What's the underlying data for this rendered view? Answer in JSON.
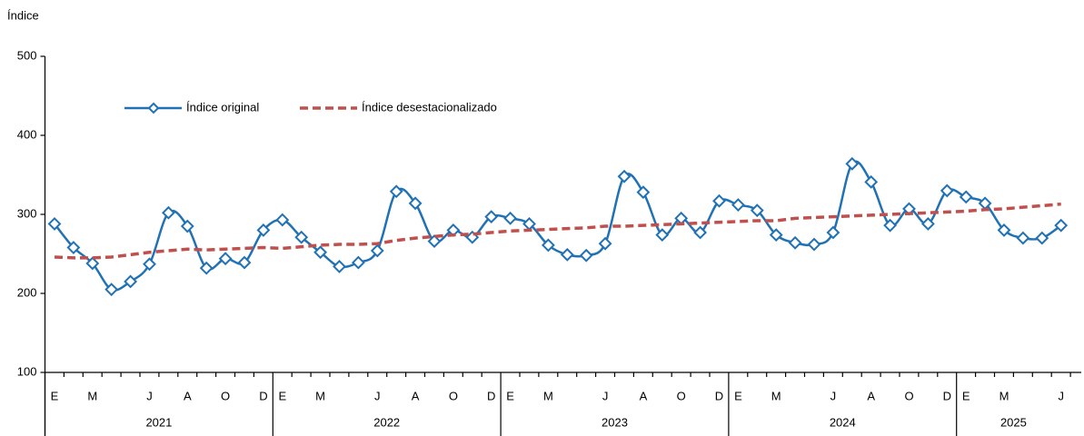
{
  "chart_data": {
    "type": "line",
    "y_label": "Índice",
    "categories": [
      "E",
      null,
      "M",
      null,
      null,
      "J",
      null,
      "A",
      null,
      "O",
      null,
      "D",
      "E",
      null,
      "M",
      null,
      null,
      "J",
      null,
      "A",
      null,
      "O",
      null,
      "D",
      "E",
      null,
      "M",
      null,
      null,
      "J",
      null,
      "A",
      null,
      "O",
      null,
      "D",
      "E",
      null,
      "M",
      null,
      null,
      "J",
      null,
      "A",
      null,
      "O",
      null,
      "D",
      "E",
      null,
      "M",
      null,
      null,
      "J"
    ],
    "years": [
      "2021",
      "2022",
      "2023",
      "2024",
      "2025"
    ],
    "series": [
      {
        "name": "Índice original",
        "color": "#2171b5",
        "style": "solid",
        "marker": "diamond",
        "values": [
          288,
          258,
          238,
          205,
          215,
          237,
          302,
          285,
          232,
          244,
          239,
          280,
          293,
          271,
          252,
          234,
          239,
          254,
          329,
          314,
          266,
          280,
          271,
          297,
          295,
          288,
          261,
          249,
          248,
          263,
          348,
          328,
          274,
          295,
          277,
          317,
          312,
          305,
          274,
          264,
          262,
          277,
          364,
          341,
          286,
          307,
          288,
          330,
          322,
          314,
          280,
          270,
          270,
          286
        ]
      },
      {
        "name": "Índice desestacionalizado",
        "color": "#c0504d",
        "style": "dashed",
        "marker": "none",
        "values": [
          246,
          245,
          245,
          246,
          249,
          252,
          254,
          256,
          255,
          256,
          257,
          258,
          257,
          259,
          261,
          262,
          262,
          263,
          267,
          270,
          272,
          274,
          275,
          277,
          279,
          280,
          281,
          282,
          283,
          285,
          285,
          286,
          287,
          288,
          289,
          290,
          291,
          292,
          292,
          295,
          296,
          297,
          298,
          299,
          300,
          301,
          302,
          303,
          304,
          306,
          307,
          309,
          311,
          313
        ]
      }
    ],
    "ylim": [
      100,
      500
    ],
    "yticks": [
      100,
      200,
      300,
      400,
      500
    ],
    "grid": false
  }
}
